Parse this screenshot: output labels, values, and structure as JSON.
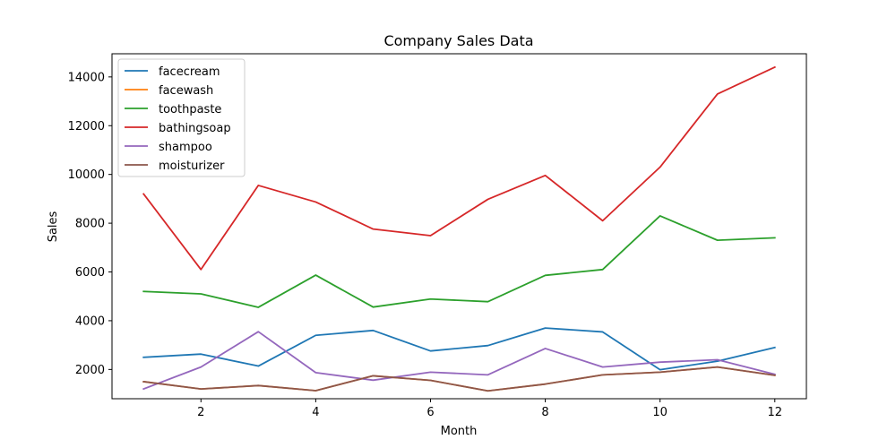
{
  "chart_data": {
    "type": "line",
    "title": "Company Sales Data",
    "xlabel": "Month",
    "ylabel": "Sales",
    "xlim": [
      0.45,
      12.55
    ],
    "ylim": [
      800,
      14950
    ],
    "xticks": [
      2,
      4,
      6,
      8,
      10,
      12
    ],
    "yticks": [
      2000,
      4000,
      6000,
      8000,
      10000,
      12000,
      14000
    ],
    "grid": false,
    "legend_position": "top-left",
    "x": [
      1,
      2,
      3,
      4,
      5,
      6,
      7,
      8,
      9,
      10,
      11,
      12
    ],
    "series": [
      {
        "name": "facecream",
        "color": "#1f77b4",
        "values": [
          2500,
          2630,
          2140,
          3400,
          3600,
          2760,
          2980,
          3700,
          3540,
          1990,
          2340,
          2900
        ]
      },
      {
        "name": "facewash",
        "color": "#ff7f0e",
        "values": [
          1500,
          1200,
          1340,
          1130,
          1740,
          1555,
          1120,
          1400,
          1780,
          1890,
          2100,
          1760
        ]
      },
      {
        "name": "toothpaste",
        "color": "#2ca02c",
        "values": [
          5200,
          5100,
          4550,
          5870,
          4560,
          4890,
          4780,
          5860,
          6100,
          8300,
          7300,
          7400
        ]
      },
      {
        "name": "bathingsoap",
        "color": "#d62728",
        "values": [
          9200,
          6100,
          9550,
          8870,
          7760,
          7490,
          8980,
          9960,
          8100,
          10300,
          13300,
          14400
        ]
      },
      {
        "name": "shampoo",
        "color": "#9467bd",
        "values": [
          1200,
          2100,
          3550,
          1870,
          1560,
          1890,
          1780,
          2860,
          2100,
          2300,
          2400,
          1800
        ]
      },
      {
        "name": "moisturizer",
        "color": "#8c564b",
        "values": [
          1500,
          1200,
          1340,
          1130,
          1740,
          1555,
          1120,
          1400,
          1780,
          1890,
          2100,
          1760
        ]
      }
    ]
  }
}
